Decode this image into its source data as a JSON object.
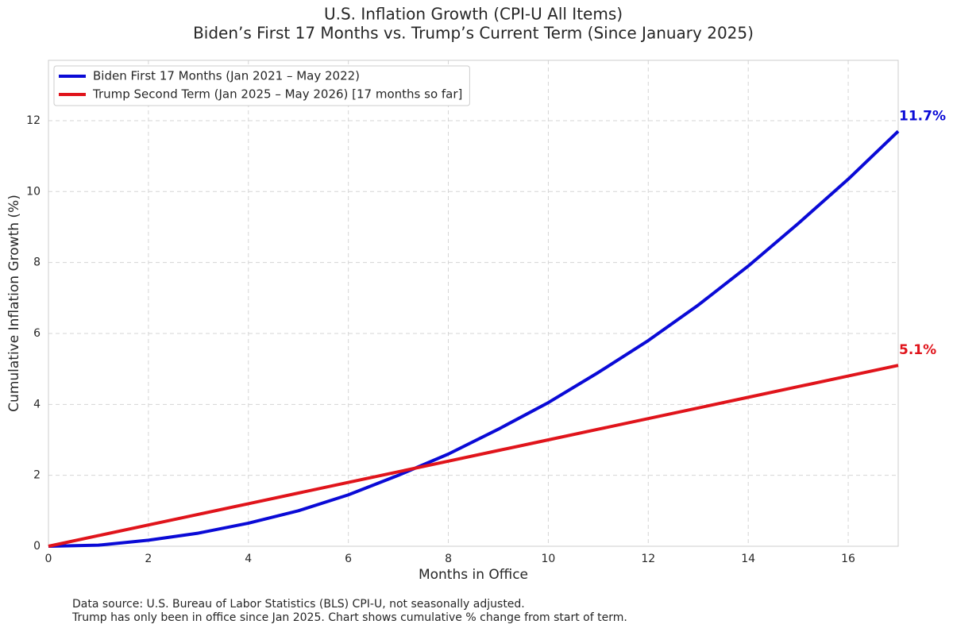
{
  "chart_data": {
    "type": "line",
    "title": "U.S. Inflation Growth (CPI-U All Items)",
    "subtitle": "Biden’s First 17 Months vs. Trump’s Current Term (Since January 2025)",
    "x_label": "Months in Office",
    "y_label": "Cumulative Inflation Growth (%)",
    "x": [
      0,
      1,
      2,
      3,
      4,
      5,
      6,
      7,
      8,
      9,
      10,
      11,
      12,
      13,
      14,
      15,
      16,
      17
    ],
    "series": [
      {
        "name": "Biden First 17 Months (Jan 2021 – May 2022)",
        "color": "#0a0ad6",
        "values": [
          0,
          0.03,
          0.17,
          0.37,
          0.65,
          1.0,
          1.45,
          2.0,
          2.6,
          3.3,
          4.05,
          4.9,
          5.8,
          6.8,
          7.9,
          9.1,
          10.35,
          11.7
        ],
        "value_labels": [
          null,
          null,
          null,
          null,
          null,
          null,
          null,
          null,
          null,
          null,
          null,
          null,
          null,
          null,
          null,
          null,
          null,
          "11.7%"
        ]
      },
      {
        "name": "Trump Second Term (Jan 2025 – May 2026) [17 months so far]",
        "color": "#e0141b",
        "values": [
          0,
          0.3,
          0.6,
          0.9,
          1.2,
          1.5,
          1.8,
          2.1,
          2.4,
          2.7,
          3.0,
          3.3,
          3.6,
          3.9,
          4.2,
          4.5,
          4.8,
          5.1
        ],
        "value_labels": [
          null,
          null,
          null,
          null,
          null,
          null,
          null,
          null,
          null,
          null,
          null,
          null,
          null,
          null,
          null,
          null,
          null,
          "5.1%"
        ]
      }
    ],
    "xlim": [
      0,
      17
    ],
    "xticks": [
      0,
      2,
      4,
      6,
      8,
      10,
      12,
      14,
      16
    ],
    "ylim": [
      0,
      13.7
    ],
    "yticks": [
      0,
      2,
      4,
      6,
      8,
      10,
      12
    ],
    "grid": true,
    "legend": "upper-left",
    "notes": [
      "Data source: U.S. Bureau of Labor Statistics (BLS) CPI-U, not seasonally adjusted.",
      "Trump has only been in office since Jan 2025. Chart shows cumulative % change from start of term."
    ]
  }
}
